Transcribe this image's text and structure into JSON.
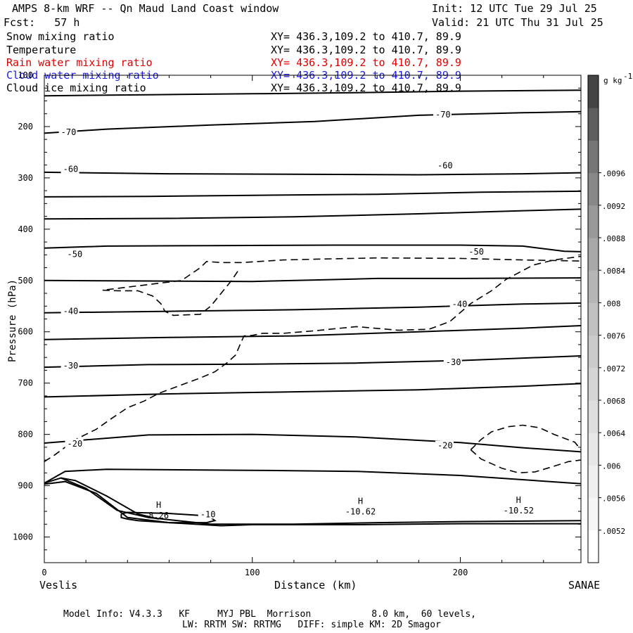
{
  "header": {
    "title": "AMPS 8-km WRF -- Qn Maud Land Coast window",
    "init": "Init: 12 UTC Tue 29 Jul 25",
    "fcst": "Fcst:   57 h",
    "valid": "Valid: 21 UTC Thu 31 Jul 25"
  },
  "fields": [
    {
      "label": "Snow mixing ratio",
      "xy": "XY= 436.3,109.2 to 410.7, 89.9",
      "color": "#000000"
    },
    {
      "label": "Temperature",
      "xy": "XY= 436.3,109.2 to 410.7, 89.9",
      "color": "#000000"
    },
    {
      "label": "Rain water mixing ratio",
      "xy": "XY= 436.3,109.2 to 410.7, 89.9",
      "color": "#e00000"
    },
    {
      "label": "Cloud water mixing ratio",
      "xy": "XY= 436.3,109.2 to 410.7, 89.9",
      "color": "#1a1ae0"
    },
    {
      "label": "Cloud ice mixing ratio",
      "xy": "XY= 436.3,109.2 to 410.7, 89.9",
      "color": "#000000"
    }
  ],
  "footer": {
    "line1": "Model Info: V4.3.3   KF     MYJ PBL  Morrison           8.0 km,  60 levels,",
    "line2": "LW: RRTM SW: RRTMG   DIFF: simple KM: 2D Smagor"
  },
  "chart_data": {
    "type": "contour",
    "xlabel": "Distance (km)",
    "ylabel": "Pressure (hPa)",
    "xlim": [
      0,
      258
    ],
    "ylim": [
      1050,
      100
    ],
    "y_reversed": true,
    "x_ticks": [
      0,
      100,
      200
    ],
    "x_tick_labels": [
      "0",
      "100",
      "200"
    ],
    "y_ticks": [
      100,
      200,
      300,
      400,
      500,
      600,
      700,
      800,
      900,
      1000
    ],
    "y_tick_labels": [
      "100",
      "200",
      "300",
      "400",
      "500",
      "600",
      "700",
      "800",
      "900",
      "1000"
    ],
    "x_endpoint_labels": {
      "left": "Veslis",
      "right": "SANAE"
    },
    "colorbar": {
      "units": "g kg",
      "units_superscript": "-1",
      "levels": [
        ".0052",
        ".0056",
        ".006",
        ".0064",
        ".0068",
        ".0072",
        ".0076",
        ".008",
        ".0084",
        ".0088",
        ".0092",
        ".0096"
      ],
      "colors": [
        "#ffffff",
        "#f6f6f6",
        "#efefef",
        "#e7e7e7",
        "#dedede",
        "#d5d5d5",
        "#cbcbcb",
        "#c1c1c1",
        "#b5b5b5",
        "#a8a8a8",
        "#999999",
        "#888888",
        "#767676",
        "#5e5e5e",
        "#444444"
      ]
    },
    "temperature_contours": [
      {
        "label": "-70",
        "label_positions": [
          [
            8,
            211
          ],
          [
            188,
            177
          ]
        ],
        "lines": [
          [
            [
              0,
              140
            ],
            [
              50,
              138
            ],
            [
              100,
              136
            ],
            [
              150,
              134
            ],
            [
              200,
              131
            ],
            [
              258,
              129
            ]
          ],
          [
            [
              0,
              213
            ],
            [
              30,
              205
            ],
            [
              80,
              197
            ],
            [
              130,
              190
            ],
            [
              180,
              178
            ],
            [
              230,
              173
            ],
            [
              258,
              171
            ]
          ]
        ]
      },
      {
        "label": "-60",
        "label_positions": [
          [
            9,
            283
          ],
          [
            189,
            276
          ]
        ],
        "lines": [
          [
            [
              0,
              289
            ],
            [
              60,
              292
            ],
            [
              120,
              293
            ],
            [
              180,
              294
            ],
            [
              230,
              292
            ],
            [
              258,
              290
            ]
          ],
          [
            [
              0,
              337
            ],
            [
              50,
              336
            ],
            [
              100,
              334
            ],
            [
              160,
              332
            ],
            [
              210,
              328
            ],
            [
              258,
              326
            ]
          ],
          [
            [
              0,
              380
            ],
            [
              60,
              379
            ],
            [
              120,
              376
            ],
            [
              180,
              370
            ],
            [
              230,
              364
            ],
            [
              258,
              361
            ]
          ]
        ]
      },
      {
        "label": "-50",
        "label_positions": [
          [
            11,
            449
          ],
          [
            204,
            444
          ]
        ],
        "lines": [
          [
            [
              0,
              437
            ],
            [
              30,
              433
            ],
            [
              80,
              432
            ],
            [
              140,
              431
            ],
            [
              200,
              431
            ],
            [
              230,
              433
            ],
            [
              250,
              443
            ],
            [
              258,
              444
            ]
          ],
          [
            [
              0,
              500
            ],
            [
              50,
              501
            ],
            [
              100,
              502
            ],
            [
              130,
              499
            ],
            [
              160,
              496
            ],
            [
              200,
              496
            ],
            [
              258,
              495
            ]
          ]
        ]
      },
      {
        "label": "-40",
        "label_positions": [
          [
            9,
            560
          ],
          [
            196,
            546
          ]
        ],
        "lines": [
          [
            [
              0,
              563
            ],
            [
              60,
              560
            ],
            [
              120,
              557
            ],
            [
              180,
              552
            ],
            [
              230,
              546
            ],
            [
              258,
              544
            ]
          ],
          [
            [
              0,
              615
            ],
            [
              60,
              611
            ],
            [
              120,
              608
            ],
            [
              180,
              600
            ],
            [
              230,
              593
            ],
            [
              258,
              588
            ]
          ]
        ]
      },
      {
        "label": "-30",
        "label_positions": [
          [
            9,
            666
          ],
          [
            193,
            659
          ]
        ],
        "lines": [
          [
            [
              0,
              669
            ],
            [
              50,
              664
            ],
            [
              100,
              663
            ],
            [
              150,
              661
            ],
            [
              200,
              656
            ],
            [
              258,
              647
            ]
          ],
          [
            [
              0,
              727
            ],
            [
              60,
              721
            ],
            [
              120,
              717
            ],
            [
              180,
              713
            ],
            [
              230,
              706
            ],
            [
              258,
              701
            ]
          ]
        ]
      },
      {
        "label": "-20",
        "label_positions": [
          [
            11,
            818
          ],
          [
            189,
            822
          ]
        ],
        "lines": [
          [
            [
              0,
              817
            ],
            [
              50,
              801
            ],
            [
              100,
              800
            ],
            [
              150,
              805
            ],
            [
              200,
              816
            ],
            [
              230,
              826
            ],
            [
              258,
              834
            ]
          ],
          [
            [
              0,
              895
            ],
            [
              10,
              872
            ],
            [
              30,
              868
            ],
            [
              100,
              870
            ],
            [
              150,
              872
            ],
            [
              200,
              880
            ],
            [
              258,
              896
            ]
          ]
        ]
      },
      {
        "label": "-10",
        "label_positions": [
          [
            75,
            956
          ]
        ],
        "lines": [
          [
            [
              37,
              955
            ],
            [
              40,
              952
            ],
            [
              60,
              954
            ],
            [
              75,
              958
            ],
            [
              80,
              962
            ],
            [
              82,
              968
            ],
            [
              78,
              972
            ],
            [
              60,
              972
            ],
            [
              45,
              968
            ],
            [
              40,
              965
            ],
            [
              37,
              962
            ],
            [
              37,
              955
            ]
          ]
        ]
      }
    ],
    "lower_contours": [
      [
        [
          0,
          895
        ],
        [
          8,
          885
        ],
        [
          20,
          905
        ],
        [
          35,
          948
        ],
        [
          50,
          962
        ],
        [
          80,
          975
        ],
        [
          120,
          975
        ],
        [
          160,
          972
        ],
        [
          200,
          970
        ],
        [
          258,
          968
        ]
      ],
      [
        [
          0,
          897
        ],
        [
          10,
          892
        ],
        [
          25,
          915
        ],
        [
          40,
          962
        ],
        [
          60,
          972
        ],
        [
          85,
          978
        ],
        [
          100,
          976
        ],
        [
          150,
          976
        ],
        [
          200,
          974
        ],
        [
          258,
          974
        ]
      ],
      [
        [
          8,
          885
        ],
        [
          15,
          890
        ],
        [
          30,
          920
        ],
        [
          45,
          955
        ],
        [
          55,
          965
        ]
      ]
    ],
    "dashed_contours": [
      [
        [
          0,
          853
        ],
        [
          5,
          840
        ],
        [
          15,
          810
        ],
        [
          25,
          790
        ],
        [
          32,
          770
        ],
        [
          40,
          748
        ],
        [
          48,
          735
        ],
        [
          55,
          720
        ],
        [
          65,
          705
        ],
        [
          75,
          690
        ],
        [
          82,
          678
        ],
        [
          88,
          660
        ],
        [
          92,
          645
        ],
        [
          94,
          626
        ],
        [
          96,
          608
        ],
        [
          100,
          607
        ],
        [
          105,
          603
        ],
        [
          115,
          603
        ],
        [
          130,
          598
        ],
        [
          150,
          590
        ],
        [
          170,
          597
        ],
        [
          185,
          595
        ],
        [
          195,
          580
        ],
        [
          205,
          545
        ],
        [
          215,
          520
        ],
        [
          222,
          498
        ],
        [
          235,
          470
        ],
        [
          245,
          460
        ],
        [
          258,
          453
        ]
      ],
      [
        [
          93,
          482
        ],
        [
          90,
          500
        ],
        [
          85,
          525
        ],
        [
          80,
          550
        ],
        [
          75,
          566
        ],
        [
          62,
          568
        ],
        [
          58,
          560
        ],
        [
          56,
          545
        ],
        [
          52,
          530
        ],
        [
          45,
          520
        ],
        [
          35,
          520
        ],
        [
          28,
          519
        ],
        [
          50,
          508
        ],
        [
          66,
          500
        ],
        [
          75,
          475
        ],
        [
          78,
          463
        ],
        [
          85,
          465
        ],
        [
          95,
          465
        ],
        [
          115,
          460
        ],
        [
          135,
          458
        ],
        [
          160,
          456
        ],
        [
          200,
          457
        ],
        [
          230,
          460
        ],
        [
          258,
          462
        ]
      ],
      [
        [
          205,
          830
        ],
        [
          210,
          810
        ],
        [
          215,
          795
        ],
        [
          223,
          785
        ],
        [
          230,
          782
        ],
        [
          238,
          787
        ],
        [
          245,
          800
        ],
        [
          255,
          815
        ],
        [
          258,
          830
        ]
      ],
      [
        [
          205,
          830
        ],
        [
          210,
          848
        ],
        [
          220,
          866
        ],
        [
          228,
          875
        ],
        [
          236,
          873
        ],
        [
          245,
          862
        ],
        [
          252,
          853
        ],
        [
          258,
          850
        ]
      ]
    ],
    "highs": [
      {
        "label": "H",
        "value": "8.26",
        "x": 55,
        "p": 962
      },
      {
        "label": "H",
        "value": "-10.62",
        "x": 152,
        "p": 955
      },
      {
        "label": "H",
        "value": "-10.52",
        "x": 228,
        "p": 953
      }
    ]
  }
}
